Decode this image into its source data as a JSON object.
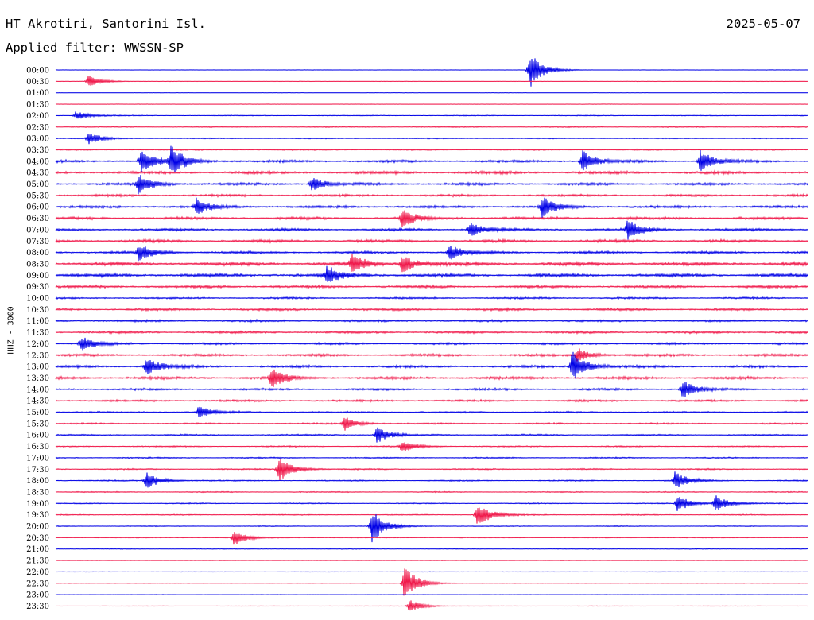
{
  "header": {
    "station": "HT Akrotiri, Santorini Isl.",
    "date": "2025-05-07",
    "filter": "Applied filter: WWSSN-SP"
  },
  "chart_data": {
    "type": "line",
    "title": "HT Akrotiri, Santorini Isl.",
    "subtitle": "Applied filter: WWSSN-SP",
    "date": "2025-05-07",
    "ylabel": "HHZ - 3000",
    "row_labels": [
      "00:00",
      "00:30",
      "01:00",
      "01:30",
      "02:00",
      "02:30",
      "03:00",
      "03:30",
      "04:00",
      "04:30",
      "05:00",
      "05:30",
      "06:00",
      "06:30",
      "07:00",
      "07:30",
      "08:00",
      "08:30",
      "09:00",
      "09:30",
      "10:00",
      "10:30",
      "11:00",
      "11:30",
      "12:00",
      "12:30",
      "13:00",
      "13:30",
      "14:00",
      "14:30",
      "15:00",
      "15:30",
      "16:00",
      "16:30",
      "17:00",
      "17:30",
      "18:00",
      "18:30",
      "19:00",
      "19:30",
      "20:00",
      "20:30",
      "21:00",
      "21:30",
      "22:00",
      "22:30",
      "23:00",
      "23:30"
    ],
    "row_noise_level": [
      0.05,
      0.05,
      0.04,
      0.05,
      0.1,
      0.12,
      0.12,
      0.15,
      0.3,
      0.35,
      0.3,
      0.28,
      0.3,
      0.32,
      0.3,
      0.33,
      0.3,
      0.42,
      0.4,
      0.32,
      0.22,
      0.28,
      0.25,
      0.28,
      0.25,
      0.3,
      0.3,
      0.33,
      0.25,
      0.25,
      0.2,
      0.18,
      0.18,
      0.15,
      0.15,
      0.15,
      0.15,
      0.12,
      0.12,
      0.12,
      0.1,
      0.1,
      0.08,
      0.06,
      0.05,
      0.05,
      0.05,
      0.05
    ],
    "events": [
      {
        "row": 0,
        "minute": 18.9,
        "amp": 1.0
      },
      {
        "row": 1,
        "minute": 1.3,
        "amp": 0.35
      },
      {
        "row": 4,
        "minute": 0.8,
        "amp": 0.25
      },
      {
        "row": 6,
        "minute": 1.3,
        "amp": 0.35
      },
      {
        "row": 8,
        "minute": 3.4,
        "amp": 0.7
      },
      {
        "row": 8,
        "minute": 4.6,
        "amp": 0.8
      },
      {
        "row": 8,
        "minute": 21.0,
        "amp": 0.6
      },
      {
        "row": 8,
        "minute": 25.7,
        "amp": 0.6
      },
      {
        "row": 10,
        "minute": 3.3,
        "amp": 0.55
      },
      {
        "row": 10,
        "minute": 10.2,
        "amp": 0.4
      },
      {
        "row": 12,
        "minute": 5.6,
        "amp": 0.45
      },
      {
        "row": 12,
        "minute": 19.4,
        "amp": 0.55
      },
      {
        "row": 13,
        "minute": 13.8,
        "amp": 0.5
      },
      {
        "row": 14,
        "minute": 16.5,
        "amp": 0.45
      },
      {
        "row": 14,
        "minute": 22.8,
        "amp": 0.55
      },
      {
        "row": 16,
        "minute": 3.3,
        "amp": 0.5
      },
      {
        "row": 16,
        "minute": 15.7,
        "amp": 0.4
      },
      {
        "row": 17,
        "minute": 11.8,
        "amp": 0.55
      },
      {
        "row": 17,
        "minute": 13.8,
        "amp": 0.55
      },
      {
        "row": 18,
        "minute": 10.8,
        "amp": 0.5
      },
      {
        "row": 24,
        "minute": 1.0,
        "amp": 0.4
      },
      {
        "row": 25,
        "minute": 20.8,
        "amp": 0.4
      },
      {
        "row": 26,
        "minute": 3.6,
        "amp": 0.5
      },
      {
        "row": 26,
        "minute": 20.6,
        "amp": 0.9
      },
      {
        "row": 27,
        "minute": 8.6,
        "amp": 0.55
      },
      {
        "row": 28,
        "minute": 25.0,
        "amp": 0.5
      },
      {
        "row": 30,
        "minute": 5.7,
        "amp": 0.35
      },
      {
        "row": 31,
        "minute": 11.5,
        "amp": 0.4
      },
      {
        "row": 32,
        "minute": 12.8,
        "amp": 0.45
      },
      {
        "row": 33,
        "minute": 13.8,
        "amp": 0.35
      },
      {
        "row": 35,
        "minute": 8.9,
        "amp": 0.75
      },
      {
        "row": 36,
        "minute": 3.6,
        "amp": 0.5
      },
      {
        "row": 36,
        "minute": 24.7,
        "amp": 0.5
      },
      {
        "row": 38,
        "minute": 24.8,
        "amp": 0.45
      },
      {
        "row": 38,
        "minute": 26.3,
        "amp": 0.45
      },
      {
        "row": 39,
        "minute": 16.8,
        "amp": 0.7
      },
      {
        "row": 40,
        "minute": 12.6,
        "amp": 0.9
      },
      {
        "row": 41,
        "minute": 7.1,
        "amp": 0.4
      },
      {
        "row": 45,
        "minute": 13.9,
        "amp": 1.0
      },
      {
        "row": 47,
        "minute": 14.1,
        "amp": 0.35
      }
    ],
    "colors": [
      "#0000e6",
      "#f0184a"
    ],
    "grid": false,
    "legend": "none"
  }
}
